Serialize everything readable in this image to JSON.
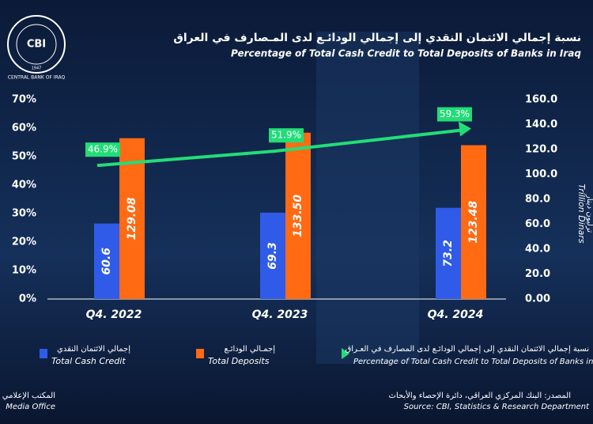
{
  "chart_data": {
    "type": "bar",
    "title": "نسبة إجمالي الائتمان النقدي إلى إجمالي الودائـع لدى المـصارف في العراق",
    "subtitle": "Percentage of Total Cash Credit to Total Deposits of Banks in Iraq",
    "categories": [
      "Q4. 2022",
      "Q4. 2023",
      "Q4. 2024"
    ],
    "series": [
      {
        "name": "Total Cash Credit",
        "name_ar": "إجمالي الائتمان النقدي",
        "type": "bar",
        "axis": "y2",
        "color": "#2f5be8",
        "values": [
          60.6,
          69.3,
          73.2
        ],
        "value_labels": [
          "60.6",
          "69.3",
          "73.2"
        ]
      },
      {
        "name": "Total Deposits",
        "name_ar": "إجمـالي الودائـع",
        "type": "bar",
        "axis": "y2",
        "color": "#ff6a13",
        "values": [
          129.08,
          133.5,
          123.48
        ],
        "value_labels": [
          "129.08",
          "133.50",
          "123.48"
        ]
      },
      {
        "name": "Percentage of Total Cash Credit to Total Deposits of Banks in Iraq",
        "name_ar": "نسبة إجمالي الائتمان النقدي إلى إجمالي الودائـع لدى المصارف في العـراق",
        "type": "line",
        "color": "#22dd77",
        "values": [
          46.9,
          51.9,
          59.3
        ],
        "value_labels": [
          "46.9%",
          "51.9%",
          "59.3%"
        ]
      }
    ],
    "ylim": [
      0,
      70
    ],
    "yticks": [
      {
        "value": 0,
        "label": "0%"
      },
      {
        "value": 10,
        "label": "10%"
      },
      {
        "value": 20,
        "label": "20%"
      },
      {
        "value": 30,
        "label": "30%"
      },
      {
        "value": 40,
        "label": "40%"
      },
      {
        "value": 50,
        "label": "50%"
      },
      {
        "value": 60,
        "label": "60%"
      },
      {
        "value": 70,
        "label": "70%"
      }
    ],
    "y2lim": [
      0,
      160
    ],
    "y2ticks": [
      {
        "value": 0,
        "label": "0.00"
      },
      {
        "value": 20,
        "label": "20.0"
      },
      {
        "value": 40,
        "label": "40.0"
      },
      {
        "value": 60,
        "label": "60.0"
      },
      {
        "value": 80,
        "label": "80.0"
      },
      {
        "value": 100,
        "label": "100.0"
      },
      {
        "value": 120,
        "label": "120.0"
      },
      {
        "value": 140,
        "label": "140.0"
      },
      {
        "value": 160,
        "label": "160.0"
      }
    ],
    "y2label": "Trillion Dinars",
    "y2label_ar": "ترليون دينار",
    "grid": false
  },
  "logo": {
    "short": "CBI",
    "name": "CENTRAL BANK OF IRAQ",
    "year": "1947"
  },
  "footer": {
    "office_ar": "المكتب الإعلامي",
    "office": "Media Office",
    "source_ar": "المصدر: البنك المركزي العراقي، دائرة الإحصاء والأبحاث",
    "source": "Source: CBI, Statistics & Research Department"
  }
}
